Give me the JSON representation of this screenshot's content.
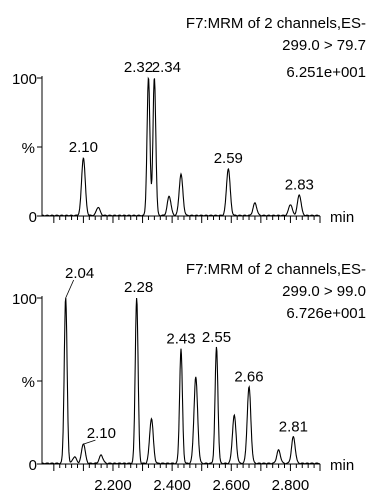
{
  "chart_data": [
    {
      "type": "line",
      "header": [
        "F7:MRM of 2 channels,ES-",
        "299.0 > 79.7",
        "6.251e+001"
      ],
      "xlabel": "min",
      "ylabel": "%",
      "y_ticks": [
        "100",
        "0"
      ],
      "ylim": [
        0,
        100
      ],
      "xlim": [
        1.96,
        2.9
      ],
      "x_tick_labels": [],
      "peaks": [
        {
          "x": 2.1,
          "y": 42,
          "label": "2.10"
        },
        {
          "x": 2.15,
          "y": 6
        },
        {
          "x": 2.32,
          "y": 100,
          "label": "2.32"
        },
        {
          "x": 2.34,
          "y": 100,
          "label": "2.34"
        },
        {
          "x": 2.39,
          "y": 14
        },
        {
          "x": 2.43,
          "y": 30
        },
        {
          "x": 2.59,
          "y": 34,
          "label": "2.59"
        },
        {
          "x": 2.68,
          "y": 9
        },
        {
          "x": 2.8,
          "y": 8
        },
        {
          "x": 2.83,
          "y": 15,
          "label": "2.83"
        }
      ]
    },
    {
      "type": "line",
      "header": [
        "F7:MRM of 2 channels,ES-",
        "299.0 > 99.0",
        "6.726e+001"
      ],
      "xlabel": "min",
      "ylabel": "%",
      "y_ticks": [
        "100",
        "0"
      ],
      "ylim": [
        0,
        100
      ],
      "xlim": [
        1.96,
        2.9
      ],
      "x_tick_labels": [
        "2.200",
        "2.400",
        "2.600",
        "2.800"
      ],
      "peaks": [
        {
          "x": 2.04,
          "y": 100,
          "label": "2.04"
        },
        {
          "x": 2.07,
          "y": 4
        },
        {
          "x": 2.1,
          "y": 12,
          "label": "2.10"
        },
        {
          "x": 2.16,
          "y": 5
        },
        {
          "x": 2.28,
          "y": 100,
          "label": "2.28"
        },
        {
          "x": 2.33,
          "y": 27
        },
        {
          "x": 2.43,
          "y": 69,
          "label": "2.43"
        },
        {
          "x": 2.48,
          "y": 52
        },
        {
          "x": 2.55,
          "y": 70,
          "label": "2.55"
        },
        {
          "x": 2.61,
          "y": 29
        },
        {
          "x": 2.66,
          "y": 46,
          "label": "2.66"
        },
        {
          "x": 2.76,
          "y": 8
        },
        {
          "x": 2.81,
          "y": 16,
          "label": "2.81"
        }
      ]
    }
  ]
}
